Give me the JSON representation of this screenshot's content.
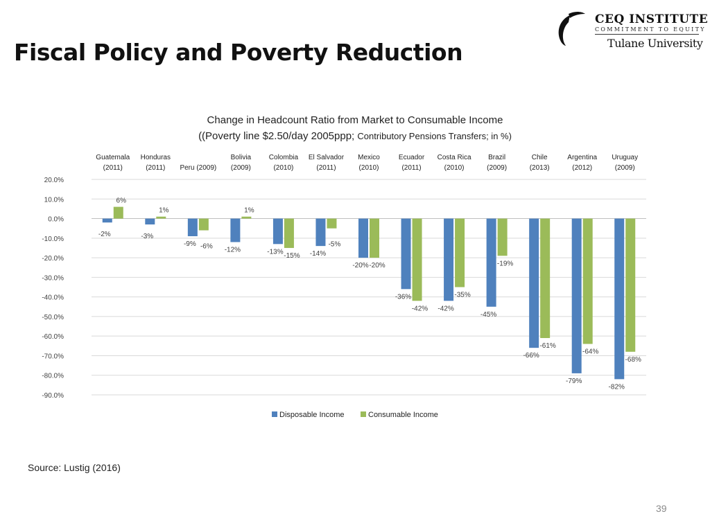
{
  "slide": {
    "title": "Fiscal Policy and Poverty Reduction",
    "source": "Source: Lustig (2016)",
    "page_number": "39"
  },
  "logo": {
    "name": "CEQ INSTITUTE",
    "tagline": "COMMITMENT TO EQUITY",
    "university": "Tulane University"
  },
  "chart_data": {
    "type": "bar",
    "title": "Change in Headcount Ratio from Market to Consumable Income",
    "subtitle_main": "((Poverty line $2.50/day 2005ppp; ",
    "subtitle_detail": "Contributory Pensions Transfers; in %)",
    "xlabel": "",
    "ylabel": "",
    "ylim": [
      -90,
      20
    ],
    "ytick_step": 10,
    "y_ticks": [
      "20.0%",
      "10.0%",
      "0.0%",
      "-10.0%",
      "-20.0%",
      "-30.0%",
      "-40.0%",
      "-50.0%",
      "-60.0%",
      "-70.0%",
      "-80.0%",
      "-90.0%"
    ],
    "grid": true,
    "legend_position": "bottom",
    "category_axis_position": "top",
    "categories": [
      [
        "Guatemala",
        "(2011)"
      ],
      [
        "Honduras",
        "(2011)"
      ],
      [
        "Peru (2009)"
      ],
      [
        "Bolivia",
        "(2009)"
      ],
      [
        "Colombia",
        "(2010)"
      ],
      [
        "El Salvador",
        "(2011)"
      ],
      [
        "Mexico",
        "(2010)"
      ],
      [
        "Ecuador",
        "(2011)"
      ],
      [
        "Costa Rica",
        "(2010)"
      ],
      [
        "Brazil",
        "(2009)"
      ],
      [
        "Chile",
        "(2013)"
      ],
      [
        "Argentina",
        "(2012)"
      ],
      [
        "Uruguay",
        "(2009)"
      ]
    ],
    "series": [
      {
        "name": "Disposable Income",
        "color": "#4f81bd",
        "values": [
          -2,
          -3,
          -9,
          -12,
          -13,
          -14,
          -20,
          -36,
          -42,
          -45,
          -66,
          -79,
          -82
        ],
        "labels": [
          "-2%",
          "-3%",
          "-9%",
          "-12%",
          "-13%",
          "-14%",
          "-20%",
          "-36%",
          "-42%",
          "-45%",
          "-66%",
          "-79%",
          "-82%"
        ]
      },
      {
        "name": "Consumable Income",
        "color": "#9bbb59",
        "values": [
          6,
          1,
          -6,
          1,
          -15,
          -5,
          -20,
          -42,
          -35,
          -19,
          -61,
          -64,
          -68
        ],
        "labels": [
          "6%",
          "1%",
          "-6%",
          "1%",
          "-15%",
          "-5%",
          "-20%",
          "-42%",
          "-35%",
          "-19%",
          "-61%",
          "-64%",
          "-68%"
        ]
      }
    ]
  }
}
